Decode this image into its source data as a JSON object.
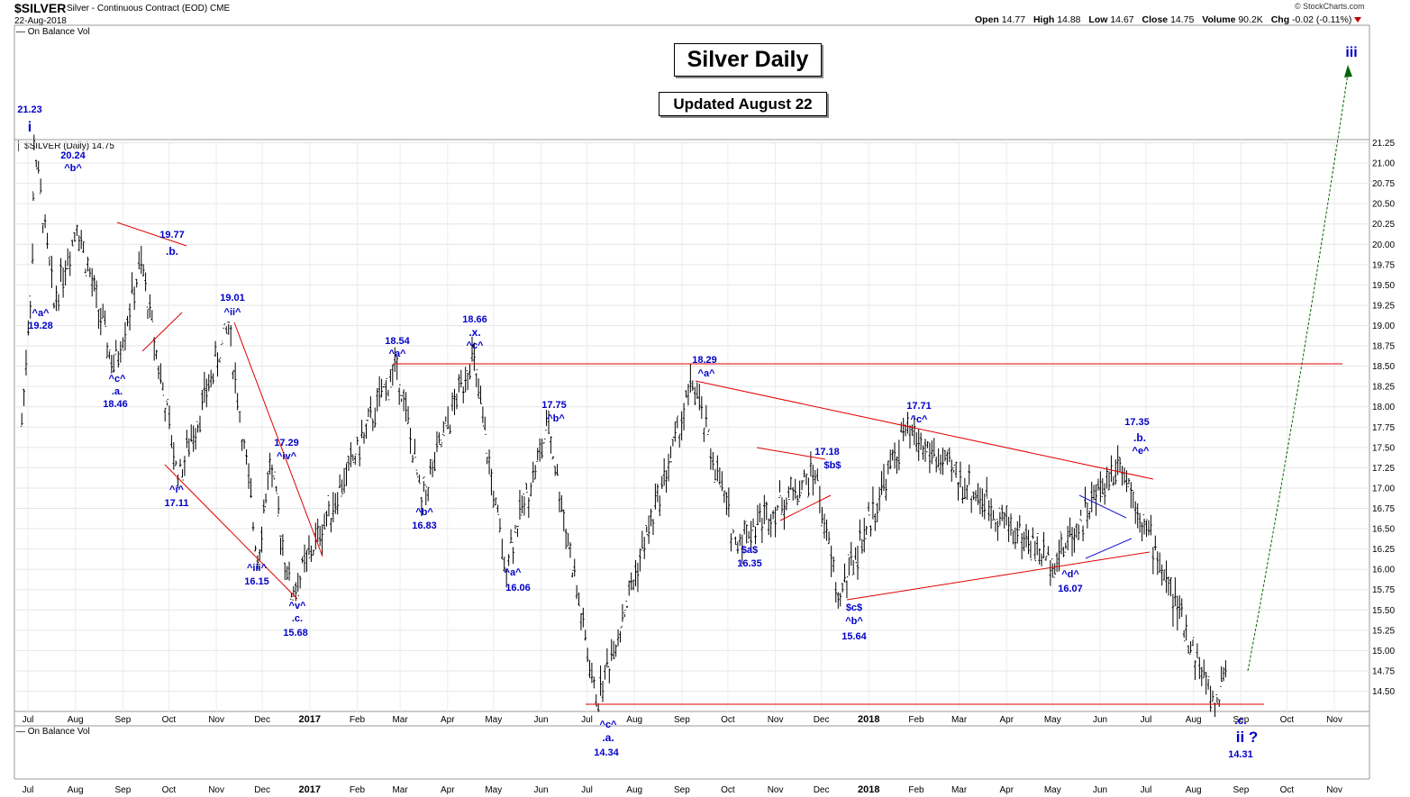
{
  "header": {
    "symbol": "$SILVER",
    "description": "Silver - Continuous Contract (EOD)",
    "exchange": "CME",
    "date": "22-Aug-2018",
    "brand": "© StockCharts.com",
    "open_label": "Open",
    "open": "14.77",
    "high_label": "High",
    "high": "14.88",
    "low_label": "Low",
    "low": "14.67",
    "close_label": "Close",
    "close": "14.75",
    "volume_label": "Volume",
    "volume": "90.2K",
    "chg_label": "Chg",
    "chg": "-0.02 (-0.11%)"
  },
  "top_indicator_label": "On Balance Vol",
  "bottom_indicator_label": "On Balance Vol",
  "price_legend": "$SILVER (Daily) 14.75",
  "title_box": "Silver Daily",
  "update_box": "Updated August 22",
  "colors": {
    "wave_label": "#0000c8",
    "trendline": "#e00000",
    "projection": "#006400",
    "triangle_inner": "#1e1ed2",
    "bars": "#000000"
  },
  "chart_data": {
    "type": "bar",
    "subtype": "ohlc_elliott_wave",
    "x_axis_labels": [
      "Jul",
      "Aug",
      "Sep",
      "Oct",
      "Nov",
      "Dec",
      "2017",
      "Feb",
      "Mar",
      "Apr",
      "May",
      "Jun",
      "Jul",
      "Aug",
      "Sep",
      "Oct",
      "Nov",
      "Dec",
      "2018",
      "Feb",
      "Mar",
      "Apr",
      "May",
      "Jun",
      "Jul",
      "Aug",
      "Sep",
      "Oct",
      "Nov"
    ],
    "bold_x_labels": [
      "2017",
      "2018"
    ],
    "y_ticks": [
      14.5,
      14.75,
      15.0,
      15.25,
      15.5,
      15.75,
      16.0,
      16.25,
      16.5,
      16.75,
      17.0,
      17.25,
      17.5,
      17.75,
      18.0,
      18.25,
      18.5,
      18.75,
      19.0,
      19.25,
      19.5,
      19.75,
      20.0,
      20.25,
      20.5,
      20.75,
      21.0,
      21.25
    ],
    "y_tick_labels": [
      "14.50",
      "14.75",
      "15.00",
      "15.25",
      "15.50",
      "15.75",
      "16.00",
      "16.25",
      "16.50",
      "16.75",
      "17.00",
      "17.25",
      "17.50",
      "17.75",
      "18.00",
      "18.25",
      "18.50",
      "18.75",
      "19.00",
      "19.25",
      "19.50",
      "19.75",
      "20.00",
      "20.25",
      "20.50",
      "20.75",
      "21.00",
      "21.25"
    ],
    "ylim": [
      14.3,
      21.35
    ],
    "last_close": 14.75,
    "price_path": [
      {
        "x": "2016-06-27",
        "y": 17.8
      },
      {
        "x": "2016-07-04",
        "y": 19.8
      },
      {
        "x": "2016-07-05",
        "y": 21.23
      },
      {
        "x": "2016-07-18",
        "y": 19.28
      },
      {
        "x": "2016-08-02",
        "y": 20.24
      },
      {
        "x": "2016-08-26",
        "y": 18.46
      },
      {
        "x": "2016-09-13",
        "y": 19.77
      },
      {
        "x": "2016-10-07",
        "y": 17.11
      },
      {
        "x": "2016-11-09",
        "y": 19.01
      },
      {
        "x": "2016-11-28",
        "y": 16.15
      },
      {
        "x": "2016-12-06",
        "y": 17.29
      },
      {
        "x": "2016-12-20",
        "y": 15.68
      },
      {
        "x": "2017-02-27",
        "y": 18.54
      },
      {
        "x": "2017-03-15",
        "y": 16.83
      },
      {
        "x": "2017-04-17",
        "y": 18.66
      },
      {
        "x": "2017-05-08",
        "y": 16.06
      },
      {
        "x": "2017-06-06",
        "y": 17.75
      },
      {
        "x": "2017-07-07",
        "y": 14.34
      },
      {
        "x": "2017-09-08",
        "y": 18.29
      },
      {
        "x": "2017-10-06",
        "y": 16.35
      },
      {
        "x": "2017-11-27",
        "y": 17.18
      },
      {
        "x": "2017-12-12",
        "y": 15.64
      },
      {
        "x": "2018-01-25",
        "y": 17.71
      },
      {
        "x": "2018-05-01",
        "y": 16.07
      },
      {
        "x": "2018-06-14",
        "y": 17.35
      },
      {
        "x": "2018-08-15",
        "y": 14.31
      },
      {
        "x": "2018-08-22",
        "y": 14.75
      }
    ],
    "annotations": [
      {
        "price": "21.23",
        "wave": "i"
      },
      {
        "price": "20.24",
        "wave": "^b^"
      },
      {
        "price": "19.28",
        "wave": "^a^"
      },
      {
        "price": "18.46",
        "wave": "^c^ .a."
      },
      {
        "price": "19.77",
        "wave": ".b."
      },
      {
        "price": "17.11",
        "wave": "^i^"
      },
      {
        "price": "19.01",
        "wave": "^ii^"
      },
      {
        "price": "16.15",
        "wave": "^iii^"
      },
      {
        "price": "17.29",
        "wave": "^iv^"
      },
      {
        "price": "15.68",
        "wave": "^v^ .c."
      },
      {
        "price": "18.54",
        "wave": "^a^"
      },
      {
        "price": "16.83",
        "wave": "^b^"
      },
      {
        "price": "18.66",
        "wave": ".x. ^c^"
      },
      {
        "price": "16.06",
        "wave": "^a^"
      },
      {
        "price": "17.75",
        "wave": "^b^"
      },
      {
        "price": "14.34",
        "wave": "^c^ .a."
      },
      {
        "price": "18.29",
        "wave": "^a^"
      },
      {
        "price": "16.35",
        "wave": "$a$"
      },
      {
        "price": "17.18",
        "wave": "$b$"
      },
      {
        "price": "15.64",
        "wave": "$c$ ^b^"
      },
      {
        "price": "17.71",
        "wave": "^c^"
      },
      {
        "price": "16.07",
        "wave": "^d^"
      },
      {
        "price": "17.35",
        "wave": ".b. ^e^"
      },
      {
        "price": "14.31",
        "wave": ".c. ii ?"
      },
      {
        "price": "",
        "wave": "iii"
      }
    ]
  },
  "labels": {
    "l_2123": "21.23",
    "l_i": "i",
    "l_2024": "20.24",
    "l_b1": "^b^",
    "l_a1": "^a^",
    "l_1928": "19.28",
    "l_c1": "^c^",
    "l_a2": ".a.",
    "l_1846": "18.46",
    "l_1977": "19.77",
    "l_b2": ".b.",
    "l_i2": "^i^",
    "l_1711": "17.11",
    "l_1901": "19.01",
    "l_ii": "^ii^",
    "l_iii": "^iii^",
    "l_1615": "16.15",
    "l_1729": "17.29",
    "l_iv": "^iv^",
    "l_v": "^v^",
    "l_c2": ".c.",
    "l_1568": "15.68",
    "l_1854": "18.54",
    "l_a3": "^a^",
    "l_b3": "^b^",
    "l_1683": "16.83",
    "l_1866": "18.66",
    "l_x": ".x.",
    "l_c3": "^c^",
    "l_a4": "^a^",
    "l_1606": "16.06",
    "l_1775": "17.75",
    "l_b4": "^b^",
    "l_c4": "^c^",
    "l_a5": ".a.",
    "l_1434": "14.34",
    "l_1829": "18.29",
    "l_a6": "^a^",
    "l_sa": "$a$",
    "l_1635": "16.35",
    "l_1718": "17.18",
    "l_sb": "$b$",
    "l_sc": "$c$",
    "l_b5": "^b^",
    "l_1564": "15.64",
    "l_1771": "17.71",
    "l_c5": "^c^",
    "l_d": "^d^",
    "l_1607": "16.07",
    "l_1735": "17.35",
    "l_b6": ".b.",
    "l_e": "^e^",
    "l_c6": ".c.",
    "l_ii2": "ii ?",
    "l_1431": "14.31",
    "l_iii2": "iii"
  }
}
